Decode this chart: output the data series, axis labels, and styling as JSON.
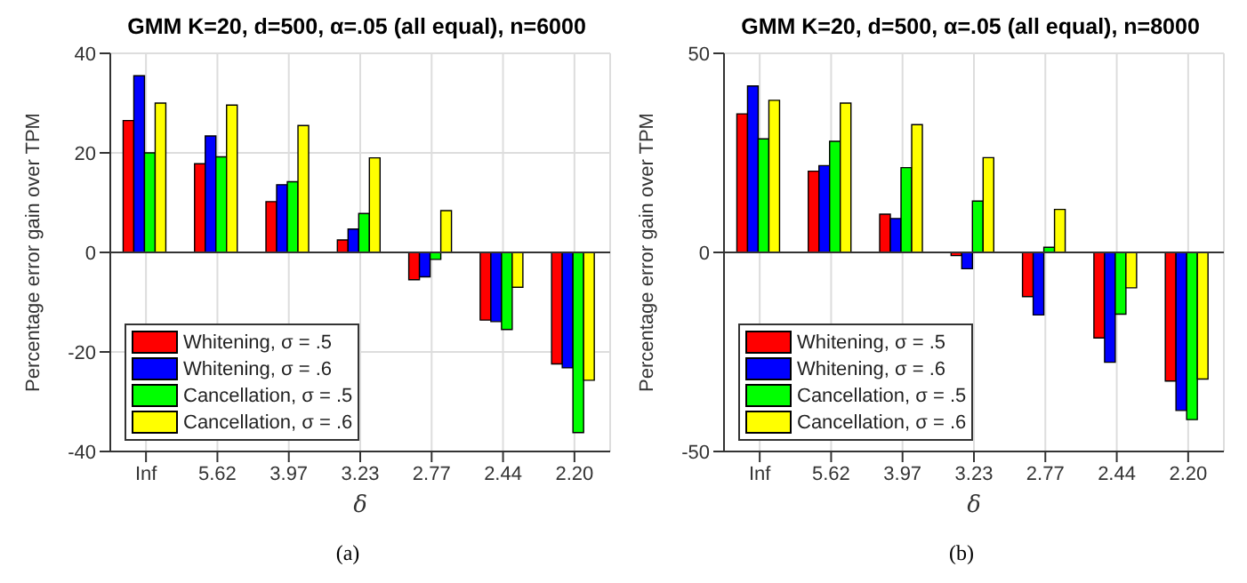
{
  "chart_data": [
    {
      "type": "bar",
      "title": "GMM K=20, d=500,  α=.05 (all equal), n=6000",
      "xlabel": "δ",
      "ylabel": "Percentage error gain over TPM",
      "categories": [
        "Inf",
        "5.62",
        "3.97",
        "3.23",
        "2.77",
        "2.44",
        "2.20"
      ],
      "series": [
        {
          "name": "Whitening, σ = .5",
          "color": "#ff0000",
          "values": [
            26.5,
            17.8,
            10.2,
            2.5,
            -5.5,
            -13.6,
            -22.4
          ]
        },
        {
          "name": "Whitening, σ = .6",
          "color": "#0000ff",
          "values": [
            35.5,
            23.4,
            13.6,
            4.7,
            -4.9,
            -13.9,
            -23.2
          ]
        },
        {
          "name": "Cancellation, σ = .5",
          "color": "#00ff00",
          "values": [
            20,
            19.2,
            14.2,
            7.8,
            -1.4,
            -15.5,
            -36.2
          ]
        },
        {
          "name": "Cancellation, σ = .6",
          "color": "#ffff00",
          "values": [
            30,
            29.6,
            25.5,
            19,
            8.4,
            -7,
            -25.7
          ]
        }
      ],
      "ylim": [
        -40,
        40
      ],
      "yticks": [
        -40,
        -20,
        0,
        20,
        40
      ],
      "grid": true,
      "legend": "bottom left",
      "ref_lines": [
        {
          "axis": "y",
          "value": 0,
          "color": "#333333"
        }
      ],
      "annotations": [
        "(a)"
      ]
    },
    {
      "type": "bar",
      "title": "GMM K=20, d=500,  α=.05 (all equal), n=8000",
      "xlabel": "δ",
      "ylabel": "Percentage error gain over TPM",
      "categories": [
        "Inf",
        "5.62",
        "3.97",
        "3.23",
        "2.77",
        "2.44",
        "2.20"
      ],
      "series": [
        {
          "name": "Whitening, σ = .5",
          "color": "#ff0000",
          "values": [
            34.8,
            20.4,
            9.6,
            -0.8,
            -11.1,
            -21.5,
            -32.3
          ]
        },
        {
          "name": "Whitening, σ = .6",
          "color": "#0000ff",
          "values": [
            41.8,
            21.8,
            8.5,
            -4.1,
            -15.7,
            -27.6,
            -39.7
          ]
        },
        {
          "name": "Cancellation, σ = .5",
          "color": "#00ff00",
          "values": [
            28.5,
            27.9,
            21.3,
            12.9,
            1.3,
            -15.5,
            -42
          ]
        },
        {
          "name": "Cancellation, σ = .6",
          "color": "#ffff00",
          "values": [
            38.2,
            37.5,
            32.1,
            23.8,
            10.8,
            -8.9,
            -31.8
          ]
        }
      ],
      "ylim": [
        -50,
        50
      ],
      "yticks": [
        -50,
        0,
        50
      ],
      "grid": true,
      "legend": "bottom left",
      "ref_lines": [
        {
          "axis": "y",
          "value": 0,
          "color": "#333333"
        }
      ],
      "annotations": [
        "(b)"
      ]
    }
  ]
}
